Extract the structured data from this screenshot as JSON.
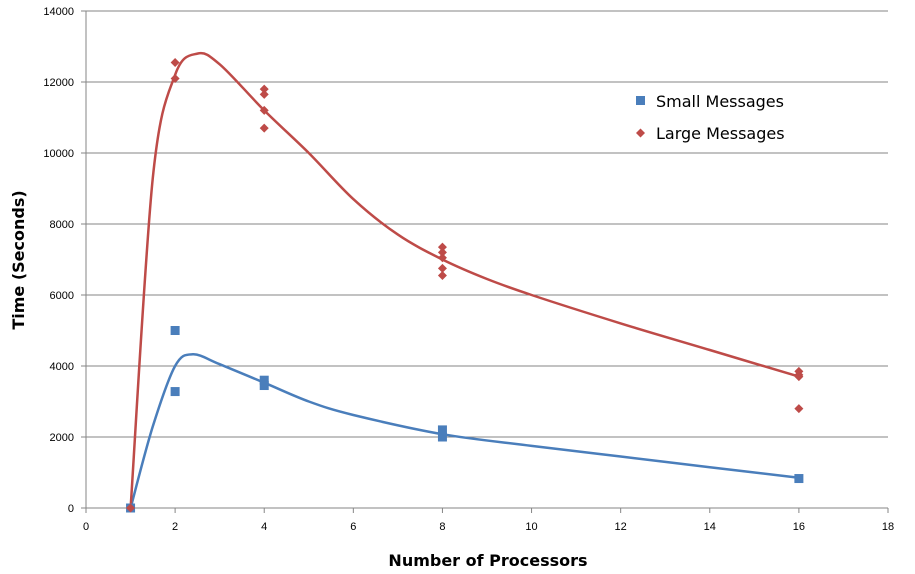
{
  "chart_data": {
    "type": "scatter",
    "xlabel": "Number of Processors",
    "ylabel": "Time (Seconds)",
    "xlim": [
      0,
      18
    ],
    "ylim": [
      0,
      14000
    ],
    "x_ticks": [
      0,
      2,
      4,
      6,
      8,
      10,
      12,
      14,
      16,
      18
    ],
    "y_ticks": [
      0,
      2000,
      4000,
      6000,
      8000,
      10000,
      12000,
      14000
    ],
    "grid": "horizontal",
    "legend_position": "top-right",
    "series": [
      {
        "name": "Small Messages",
        "marker": "square",
        "color": "#4a7ebb",
        "points": [
          [
            1,
            0
          ],
          [
            2,
            5000
          ],
          [
            2,
            3280
          ],
          [
            4,
            3450
          ],
          [
            4,
            3600
          ],
          [
            8,
            2000
          ],
          [
            8,
            2200
          ],
          [
            16,
            830
          ]
        ],
        "trend": [
          [
            1,
            0
          ],
          [
            1.5,
            2300
          ],
          [
            2,
            4000
          ],
          [
            2.4,
            4330
          ],
          [
            3,
            4050
          ],
          [
            4,
            3530
          ],
          [
            5,
            3000
          ],
          [
            6,
            2620
          ],
          [
            8,
            2080
          ],
          [
            10,
            1750
          ],
          [
            12,
            1450
          ],
          [
            14,
            1150
          ],
          [
            16,
            850
          ]
        ]
      },
      {
        "name": "Large Messages",
        "marker": "diamond",
        "color": "#be4b48",
        "points": [
          [
            1,
            0
          ],
          [
            2,
            12550
          ],
          [
            2,
            12100
          ],
          [
            4,
            11800
          ],
          [
            4,
            11650
          ],
          [
            4,
            11200
          ],
          [
            4,
            10700
          ],
          [
            8,
            7350
          ],
          [
            8,
            7200
          ],
          [
            8,
            7050
          ],
          [
            8,
            6750
          ],
          [
            8,
            6550
          ],
          [
            16,
            3850
          ],
          [
            16,
            3750
          ],
          [
            16,
            3700
          ],
          [
            16,
            2800
          ]
        ],
        "trend": [
          [
            1,
            0
          ],
          [
            1.5,
            9300
          ],
          [
            2,
            12200
          ],
          [
            2.5,
            12800
          ],
          [
            3,
            12500
          ],
          [
            4,
            11200
          ],
          [
            5,
            10000
          ],
          [
            6,
            8700
          ],
          [
            7,
            7700
          ],
          [
            8,
            7000
          ],
          [
            9,
            6450
          ],
          [
            10,
            6000
          ],
          [
            12,
            5200
          ],
          [
            14,
            4450
          ],
          [
            16,
            3700
          ]
        ]
      }
    ]
  }
}
